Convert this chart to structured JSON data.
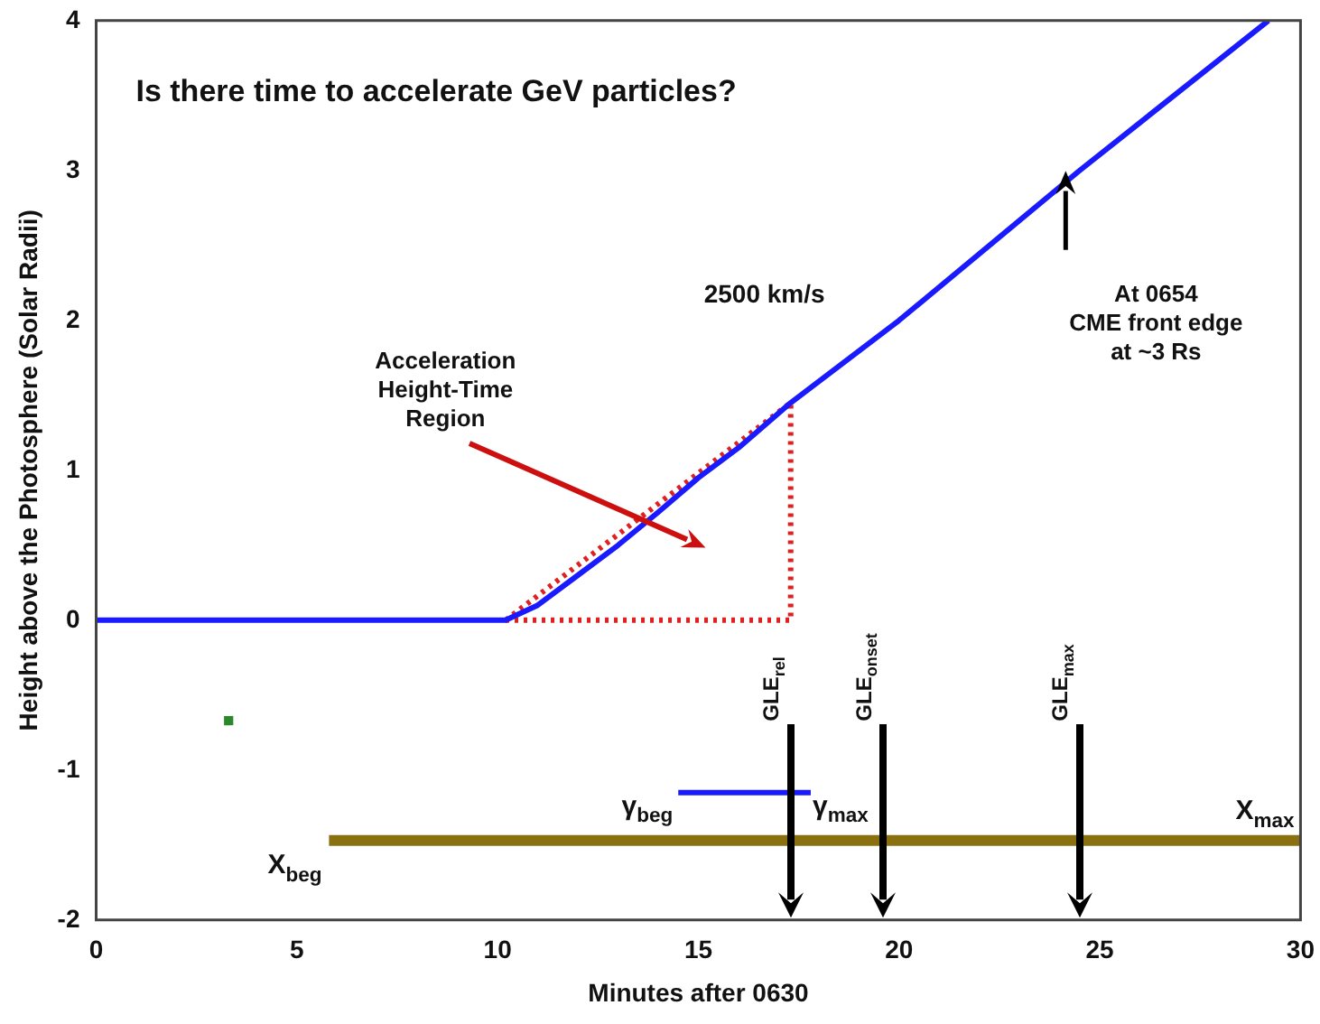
{
  "chart_data": {
    "type": "line",
    "title": "Is there time to accelerate GeV particles?",
    "xlabel": "Minutes after 0630",
    "ylabel": "Height above the Photosphere (Solar Radii)",
    "xlim": [
      0,
      30
    ],
    "xticks": [
      0,
      5,
      10,
      15,
      20,
      25,
      30
    ],
    "ylim": [
      -2,
      4
    ],
    "yticks": [
      -2,
      -1,
      0,
      1,
      2,
      3,
      4
    ],
    "grid": false,
    "legend": false,
    "series": [
      {
        "color": "#1a1aff",
        "x": [
          0,
          10.2,
          11,
          12,
          13,
          14,
          15,
          16,
          17.3,
          20,
          24.5,
          29.2
        ],
        "values": [
          0,
          0,
          0.1,
          0.3,
          0.5,
          0.72,
          0.95,
          1.15,
          1.45,
          2.0,
          3.0,
          4.0
        ]
      },
      {
        "color": "#e02020",
        "line_style": "dotted",
        "x": [
          10.2,
          17.3
        ],
        "values": [
          0,
          1.45
        ]
      },
      {
        "color": "#e02020",
        "line_style": "dotted",
        "x": [
          10.2,
          17.3,
          17.3
        ],
        "values": [
          0,
          0,
          1.45
        ]
      },
      {
        "type": "scatter",
        "color": "#2a8a2a",
        "x": [
          3.3
        ],
        "values": [
          -0.67
        ]
      },
      {
        "color": "#1a1aff",
        "x": [
          14.5,
          17.8
        ],
        "values": [
          -1.15,
          -1.15
        ]
      },
      {
        "color": "#8b7010",
        "x": [
          5.8,
          30
        ],
        "values": [
          -1.47,
          -1.47
        ]
      }
    ],
    "annotations": [
      {
        "text": "2500 km/s",
        "x": 19.5,
        "y": 1.9
      },
      "Acceleration\nHeight-Time\nRegion",
      "At 0654\nCME front edge\nat ~3 Rs",
      {
        "text": "γ$_{beg}$",
        "x": 14.5,
        "y": -1.15
      },
      {
        "text": "γ$_{max}$",
        "x": 17.8,
        "y": -1.15
      },
      {
        "text": "X$_{beg}$",
        "x": 5.8,
        "y": -1.47
      },
      {
        "text": "X$_{max}$",
        "x": 30,
        "y": -1.47
      }
    ],
    "ref_lines": [
      {
        "axis": "x",
        "value": 17.3,
        "label": "GLE$_{rel}$",
        "color": "#000000"
      },
      {
        "axis": "x",
        "value": 19.6,
        "label": "GLE$_{onset}$",
        "color": "#000000"
      },
      {
        "axis": "x",
        "value": 24.5,
        "label": "GLE$_{max}$",
        "color": "#000000"
      }
    ]
  }
}
